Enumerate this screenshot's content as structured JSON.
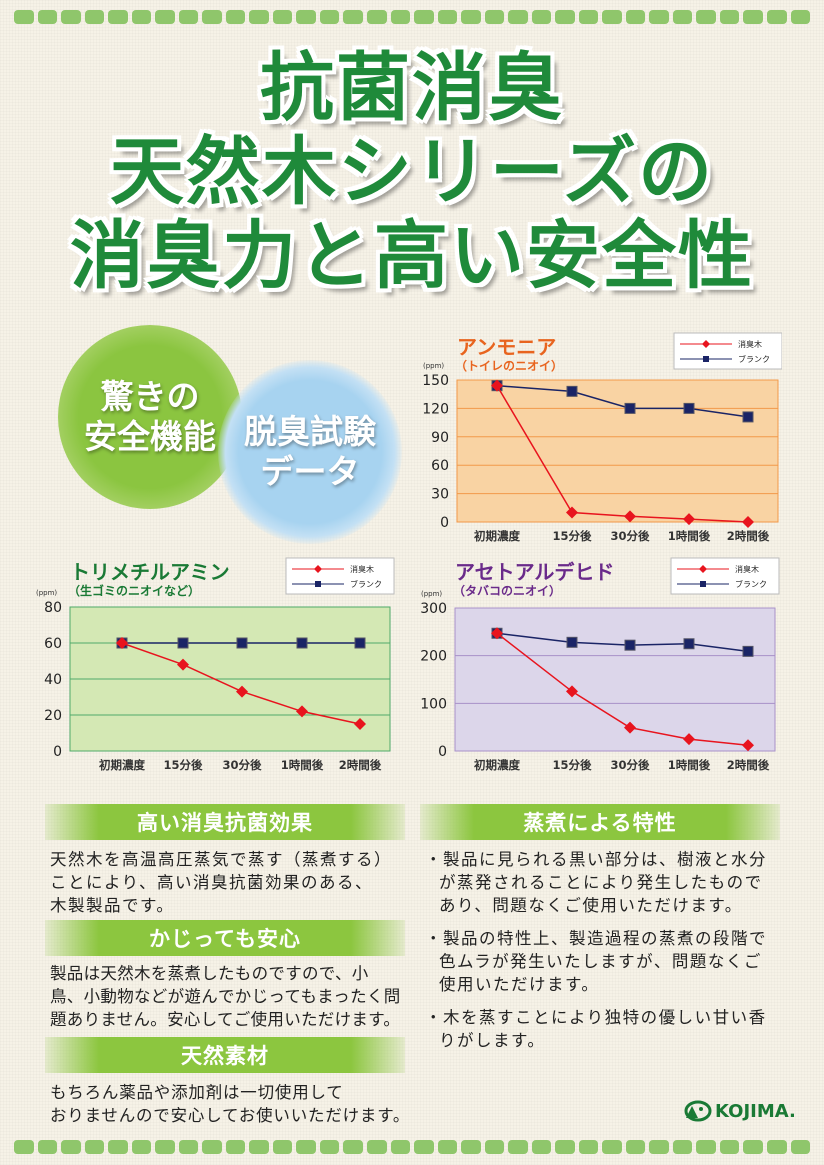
{
  "title": {
    "line1": "抗菌消臭",
    "line2": "天然木シリーズの",
    "line3": "消臭力と高い安全性"
  },
  "circles": {
    "left": {
      "line1": "驚きの",
      "line2": "安全機能"
    },
    "right": {
      "line1": "脱臭試験",
      "line2": "データ"
    }
  },
  "colors": {
    "green": "#1f8a3a",
    "banner": "#8cc63f",
    "wood_series": "#e8141e",
    "blank_series": "#1a2466"
  },
  "chart_data": [
    {
      "type": "line",
      "title": "アンモニア",
      "subtitle": "（トイレのニオイ）",
      "unit": "(ppm)",
      "title_color": "#e8641e",
      "bg": "#f9d3a3",
      "grid": "#f2994a",
      "categories": [
        "初期濃度",
        "15分後",
        "30分後",
        "1時間後",
        "2時間後"
      ],
      "ylim": [
        0,
        150
      ],
      "yticks": [
        0,
        30,
        60,
        90,
        120,
        150
      ],
      "legend": "top-right",
      "series": [
        {
          "name": "消臭木",
          "marker": "diamond",
          "values": [
            144,
            10,
            6,
            3,
            0
          ]
        },
        {
          "name": "ブランク",
          "marker": "square",
          "values": [
            144,
            138,
            120,
            120,
            111
          ]
        }
      ]
    },
    {
      "type": "line",
      "title": "トリメチルアミン",
      "subtitle": "（生ゴミのニオイなど）",
      "unit": "(ppm)",
      "title_color": "#1a7a35",
      "bg": "#d4e8b4",
      "grid": "#4faa6a",
      "categories": [
        "初期濃度",
        "15分後",
        "30分後",
        "1時間後",
        "2時間後"
      ],
      "ylim": [
        0,
        80
      ],
      "yticks": [
        0,
        20,
        40,
        60,
        80
      ],
      "legend": "top-right",
      "series": [
        {
          "name": "消臭木",
          "marker": "diamond",
          "values": [
            60,
            48,
            33,
            22,
            15
          ]
        },
        {
          "name": "ブランク",
          "marker": "square",
          "values": [
            60,
            60,
            60,
            60,
            60
          ]
        }
      ]
    },
    {
      "type": "line",
      "title": "アセトアルデヒド",
      "subtitle": "（タバコのニオイ）",
      "unit": "(ppm)",
      "title_color": "#6a2a8a",
      "bg": "#dcd6ea",
      "grid": "#a890c8",
      "categories": [
        "初期濃度",
        "15分後",
        "30分後",
        "1時間後",
        "2時間後"
      ],
      "ylim": [
        0,
        300
      ],
      "yticks": [
        0,
        100,
        200,
        300
      ],
      "legend": "top-right",
      "series": [
        {
          "name": "消臭木",
          "marker": "diamond",
          "values": [
            247,
            125,
            49,
            25,
            12
          ]
        },
        {
          "name": "ブランク",
          "marker": "square",
          "values": [
            247,
            228,
            222,
            225,
            209
          ]
        }
      ]
    }
  ],
  "sections": {
    "s1": {
      "heading": "高い消臭抗菌効果",
      "lines": [
        "天然木を高温高圧蒸気で蒸す（蒸煮する）",
        "ことにより、高い消臭抗菌効果のある、",
        "木製製品です。"
      ]
    },
    "s2": {
      "heading": "かじっても安心",
      "lines": [
        "製品は天然木を蒸煮したものですので、小",
        "鳥、小動物などが遊んでかじってもまったく問",
        "題ありません。安心してご使用いただけます。"
      ]
    },
    "s3": {
      "heading": "天然素材",
      "lines": [
        "もちろん薬品や添加剤は一切使用して",
        "おりませんので安心してお使いいただけます。"
      ]
    },
    "s4": {
      "heading": "蒸煮による特性",
      "bullets": [
        "・製品に見られる黒い部分は、樹液と水分が蒸発されることにより発生したものであり、問題なくご使用いただけます。",
        "・製品の特性上、製造過程の蒸煮の段階で色ムラが発生いたしますが、問題なくご使用いただけます。",
        "・木を蒸すことにより独特の優しい甘い香りがします。"
      ]
    }
  },
  "logo": {
    "text": "KOJIMA."
  }
}
